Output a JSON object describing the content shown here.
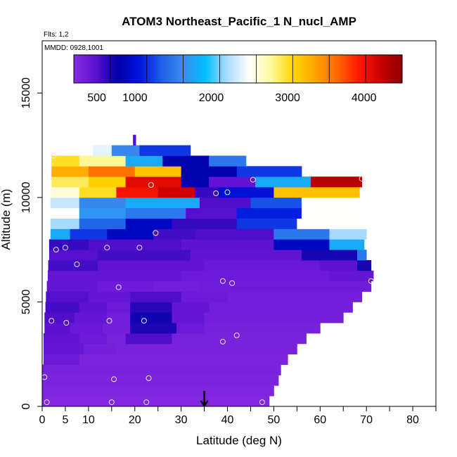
{
  "chart_data": {
    "type": "heatmap",
    "title": "ATOM3 Northeast_Pacific_1 N_nucl_AMP",
    "annotations": {
      "flights": "Flts: 1,2",
      "dates": "MMDD: 0928,1001"
    },
    "xlabel": "Latitude (deg N)",
    "ylabel": "Altitude (m)",
    "xlim": [
      0,
      85
    ],
    "ylim": [
      0,
      17500
    ],
    "x_ticks": [
      0,
      5,
      10,
      20,
      30,
      40,
      50,
      60,
      70,
      80
    ],
    "x_tick_labels": [
      "0",
      "5",
      "10",
      "20",
      "30",
      "40",
      "50",
      "60",
      "70",
      "80"
    ],
    "x_minor_ticks": [
      15,
      25,
      35,
      45,
      55,
      65,
      75,
      85
    ],
    "y_ticks": [
      0,
      5000,
      10000,
      15000
    ],
    "y_tick_labels": [
      "0",
      "5000",
      "10000",
      "15000"
    ],
    "colorbar": {
      "range": [
        200,
        4500
      ],
      "ticks": [
        500,
        1000,
        2000,
        3000,
        4000
      ],
      "tick_labels": [
        "500",
        "1000",
        "2000",
        "3000",
        "4000"
      ],
      "colors": [
        "#8a2be2",
        "#5a10d0",
        "#0000a8",
        "#0014e0",
        "#1e5ee8",
        "#3a8cf0",
        "#00bfff",
        "#aadcff",
        "#ffffff",
        "#fff8a0",
        "#ffd700",
        "#ffa500",
        "#ff6a00",
        "#ff1a00",
        "#cc0000",
        "#8b0000"
      ]
    },
    "rows": [
      {
        "alt": [
          0,
          500
        ],
        "lat": [
          0,
          49
        ],
        "segments": [
          [
            0,
            49,
            250
          ]
        ]
      },
      {
        "alt": [
          500,
          1000
        ],
        "lat": [
          0,
          50
        ],
        "segments": [
          [
            0,
            50,
            260
          ]
        ]
      },
      {
        "alt": [
          1000,
          1500
        ],
        "lat": [
          0,
          51
        ],
        "segments": [
          [
            0,
            51,
            280
          ]
        ]
      },
      {
        "alt": [
          1500,
          2000
        ],
        "lat": [
          0,
          51.5
        ],
        "segments": [
          [
            0,
            51.5,
            300
          ]
        ]
      },
      {
        "alt": [
          2000,
          2500
        ],
        "lat": [
          0.3,
          53
        ],
        "segments": [
          [
            0.3,
            8,
            380
          ],
          [
            8,
            53,
            280
          ]
        ]
      },
      {
        "alt": [
          2500,
          3000
        ],
        "lat": [
          0.3,
          55
        ],
        "segments": [
          [
            0.3,
            9,
            420
          ],
          [
            9,
            16,
            330
          ],
          [
            16,
            55,
            300
          ]
        ]
      },
      {
        "alt": [
          3000,
          3500
        ],
        "lat": [
          0.3,
          57
        ],
        "segments": [
          [
            0.3,
            8,
            450
          ],
          [
            8,
            14,
            380
          ],
          [
            14,
            18,
            300
          ],
          [
            18,
            28,
            520
          ],
          [
            28,
            57,
            300
          ]
        ]
      },
      {
        "alt": [
          3500,
          4000
        ],
        "lat": [
          0.5,
          60
        ],
        "segments": [
          [
            0.5,
            6,
            480
          ],
          [
            6,
            13,
            400
          ],
          [
            13,
            19,
            330
          ],
          [
            19,
            29,
            680
          ],
          [
            29,
            35,
            380
          ],
          [
            35,
            60,
            310
          ]
        ]
      },
      {
        "alt": [
          4000,
          4500
        ],
        "lat": [
          0.5,
          65
        ],
        "segments": [
          [
            0.5,
            7,
            520
          ],
          [
            7,
            14,
            420
          ],
          [
            14,
            19,
            340
          ],
          [
            19,
            28,
            720
          ],
          [
            28,
            35,
            420
          ],
          [
            35,
            65,
            330
          ]
        ]
      },
      {
        "alt": [
          4500,
          5000
        ],
        "lat": [
          0.7,
          67
        ],
        "segments": [
          [
            0.7,
            8,
            560
          ],
          [
            8,
            14,
            460
          ],
          [
            14,
            19,
            380
          ],
          [
            19,
            28,
            650
          ],
          [
            28,
            36,
            430
          ],
          [
            36,
            67,
            340
          ]
        ]
      },
      {
        "alt": [
          5000,
          5500
        ],
        "lat": [
          0.8,
          69
        ],
        "segments": [
          [
            0.8,
            10,
            500
          ],
          [
            10,
            19,
            420
          ],
          [
            19,
            30,
            520
          ],
          [
            30,
            40,
            380
          ],
          [
            40,
            69,
            330
          ]
        ]
      },
      {
        "alt": [
          5500,
          6000
        ],
        "lat": [
          1,
          71
        ],
        "segments": [
          [
            1,
            12,
            430
          ],
          [
            12,
            24,
            380
          ],
          [
            24,
            34,
            340
          ],
          [
            34,
            71,
            360
          ]
        ]
      },
      {
        "alt": [
          6000,
          6500
        ],
        "lat": [
          1.2,
          71.5
        ],
        "segments": [
          [
            1.2,
            10,
            420
          ],
          [
            10,
            30,
            430
          ],
          [
            30,
            62,
            380
          ],
          [
            62,
            71.5,
            420
          ]
        ]
      },
      {
        "alt": [
          6500,
          7000
        ],
        "lat": [
          1.3,
          71
        ],
        "segments": [
          [
            1.3,
            12,
            560
          ],
          [
            12,
            35,
            450
          ],
          [
            35,
            60,
            400
          ],
          [
            60,
            68,
            470
          ],
          [
            68,
            71,
            700
          ]
        ]
      },
      {
        "alt": [
          7000,
          7500
        ],
        "lat": [
          1.5,
          70
        ],
        "segments": [
          [
            1.5,
            12,
            500
          ],
          [
            12,
            32,
            560
          ],
          [
            32,
            56,
            440
          ],
          [
            56,
            68,
            700
          ],
          [
            68,
            70,
            1500
          ]
        ]
      },
      {
        "alt": [
          7500,
          8000
        ],
        "lat": [
          1.5,
          69.5
        ],
        "segments": [
          [
            1.5,
            10,
            600
          ],
          [
            10,
            30,
            520
          ],
          [
            30,
            50,
            460
          ],
          [
            50,
            62,
            900
          ],
          [
            62,
            69.5,
            1800
          ]
        ]
      },
      {
        "alt": [
          8000,
          8500
        ],
        "lat": [
          1.8,
          70
        ],
        "segments": [
          [
            1.8,
            6,
            1800
          ],
          [
            6,
            14,
            1200
          ],
          [
            14,
            24,
            900
          ],
          [
            24,
            33,
            560
          ],
          [
            33,
            50,
            520
          ],
          [
            50,
            62,
            1500
          ],
          [
            62,
            70,
            2200
          ]
        ]
      },
      {
        "alt": [
          8500,
          9000
        ],
        "lat": [
          1.8,
          70
        ],
        "segments": [
          [
            1.8,
            8,
            2200
          ],
          [
            8,
            18,
            1400
          ],
          [
            18,
            28,
            900
          ],
          [
            28,
            42,
            600
          ],
          [
            42,
            55,
            1200
          ],
          [
            55,
            70,
            2500
          ]
        ]
      },
      {
        "alt": [
          9000,
          9500
        ],
        "lat": [
          1.8,
          70
        ],
        "segments": [
          [
            1.8,
            8,
            2500
          ],
          [
            8,
            18,
            1700
          ],
          [
            18,
            31,
            1500
          ],
          [
            31,
            42,
            500
          ],
          [
            42,
            56,
            1100
          ],
          [
            56,
            70,
            2500
          ]
        ]
      },
      {
        "alt": [
          9500,
          10000
        ],
        "lat": [
          1.8,
          69.5
        ],
        "segments": [
          [
            1.8,
            8,
            2300
          ],
          [
            8,
            18,
            1600
          ],
          [
            18,
            34,
            1800
          ],
          [
            34,
            45,
            520
          ],
          [
            45,
            56,
            1300
          ],
          [
            56,
            69.5,
            2500
          ]
        ]
      },
      {
        "alt": [
          10000,
          10500
        ],
        "lat": [
          1.8,
          68.5
        ],
        "segments": [
          [
            1.8,
            8,
            2600
          ],
          [
            8,
            16,
            3000
          ],
          [
            16,
            25,
            4000
          ],
          [
            25,
            33,
            4200
          ],
          [
            33,
            38,
            600
          ],
          [
            38,
            50,
            1000
          ],
          [
            50,
            68.5,
            3200
          ]
        ]
      },
      {
        "alt": [
          10500,
          11000
        ],
        "lat": [
          2,
          69
        ],
        "segments": [
          [
            2,
            10,
            2900
          ],
          [
            10,
            18,
            3100
          ],
          [
            18,
            30,
            4100
          ],
          [
            30,
            36,
            800
          ],
          [
            36,
            46,
            450
          ],
          [
            46,
            58,
            1800
          ],
          [
            58,
            69,
            4300
          ]
        ]
      },
      {
        "alt": [
          11000,
          11500
        ],
        "lat": [
          2,
          56
        ],
        "segments": [
          [
            2,
            10,
            3300
          ],
          [
            10,
            20,
            3600
          ],
          [
            20,
            30,
            3200
          ],
          [
            30,
            42,
            800
          ],
          [
            42,
            56,
            1200
          ]
        ]
      },
      {
        "alt": [
          11500,
          12000
        ],
        "lat": [
          2,
          44
        ],
        "segments": [
          [
            2,
            8,
            3000
          ],
          [
            8,
            18,
            2800
          ],
          [
            18,
            26,
            1800
          ],
          [
            26,
            36,
            800
          ],
          [
            36,
            44,
            1500
          ]
        ]
      },
      {
        "alt": [
          12000,
          12500
        ],
        "lat": [
          11,
          32
        ],
        "segments": [
          [
            11,
            15,
            2400
          ],
          [
            15,
            21,
            1600
          ],
          [
            21,
            32,
            1200
          ]
        ]
      },
      {
        "alt": [
          12500,
          13000
        ],
        "lat": [
          19.6,
          20.2
        ],
        "segments": [
          [
            19.6,
            20.2,
            500
          ]
        ]
      }
    ],
    "sample_points": [
      [
        0.5,
        1400
      ],
      [
        1,
        200
      ],
      [
        2,
        4100
      ],
      [
        2.5,
        12000
      ],
      [
        3,
        7500
      ],
      [
        5,
        7600
      ],
      [
        5.2,
        4000
      ],
      [
        7.5,
        6800
      ],
      [
        14,
        7600
      ],
      [
        14.5,
        4100
      ],
      [
        15,
        200
      ],
      [
        15.5,
        1300
      ],
      [
        16.5,
        5700
      ],
      [
        21,
        7600
      ],
      [
        22,
        4100
      ],
      [
        22.5,
        200
      ],
      [
        23,
        1350
      ],
      [
        23.5,
        10600
      ],
      [
        24.5,
        8300
      ],
      [
        37.5,
        10200
      ],
      [
        39,
        3100
      ],
      [
        39,
        6000
      ],
      [
        40,
        10250
      ],
      [
        41,
        5900
      ],
      [
        42,
        3400
      ],
      [
        45.5,
        10850
      ],
      [
        47.5,
        200
      ],
      [
        69,
        10900
      ],
      [
        71,
        6000
      ]
    ],
    "arrow_latitude": 35
  }
}
